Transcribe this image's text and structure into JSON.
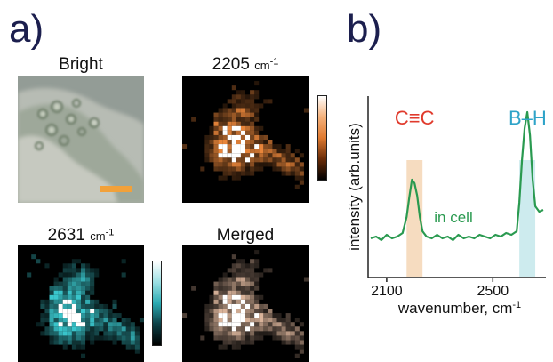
{
  "panels": {
    "a_label": "a)",
    "b_label": "b)",
    "bright_title": "Bright",
    "raman1_title": "2205",
    "raman1_unit": "cm",
    "raman1_exp": "-1",
    "raman2_title": "2631",
    "raman2_unit": "cm",
    "raman2_exp": "-1",
    "merged_title": "Merged"
  },
  "colors": {
    "bright_bg": "#8e9891",
    "orange_hot": "#e8853a",
    "cyan_hot": "#3ac6cc",
    "scale_bar": "#f2a13a",
    "cc_text": "#e03a2c",
    "bh_text": "#2ea3c8",
    "trace": "#2a9a50",
    "cc_band": "#f6dcc0",
    "bh_band": "#cdebee"
  },
  "chart_data": {
    "type": "line",
    "xlabel": "wavenumber, cm",
    "xlabel_exp": "-1",
    "ylabel": "intensity (arb.units)",
    "xlim": [
      2030,
      2700
    ],
    "ylim": [
      0,
      1
    ],
    "xticks": [
      2100,
      2500
    ],
    "annotations": [
      {
        "text": "C≡C",
        "x": 2205,
        "band": [
          2175,
          2235
        ]
      },
      {
        "text": "B–H",
        "x": 2631,
        "band": [
          2600,
          2660
        ]
      },
      {
        "text": "in cell"
      }
    ],
    "series": [
      {
        "x": [
          2040,
          2060,
          2080,
          2100,
          2120,
          2140,
          2160,
          2175,
          2185,
          2195,
          2205,
          2215,
          2225,
          2235,
          2250,
          2270,
          2290,
          2310,
          2330,
          2350,
          2370,
          2390,
          2410,
          2430,
          2450,
          2470,
          2490,
          2510,
          2530,
          2550,
          2570,
          2590,
          2600,
          2610,
          2620,
          2630,
          2640,
          2650,
          2660,
          2675,
          2690
        ],
        "y": [
          0.22,
          0.23,
          0.21,
          0.24,
          0.22,
          0.23,
          0.25,
          0.34,
          0.45,
          0.55,
          0.53,
          0.46,
          0.34,
          0.26,
          0.23,
          0.22,
          0.24,
          0.22,
          0.23,
          0.21,
          0.24,
          0.22,
          0.23,
          0.22,
          0.24,
          0.23,
          0.22,
          0.24,
          0.23,
          0.25,
          0.24,
          0.26,
          0.42,
          0.66,
          0.84,
          0.93,
          0.8,
          0.55,
          0.4,
          0.37,
          0.38
        ]
      }
    ]
  }
}
